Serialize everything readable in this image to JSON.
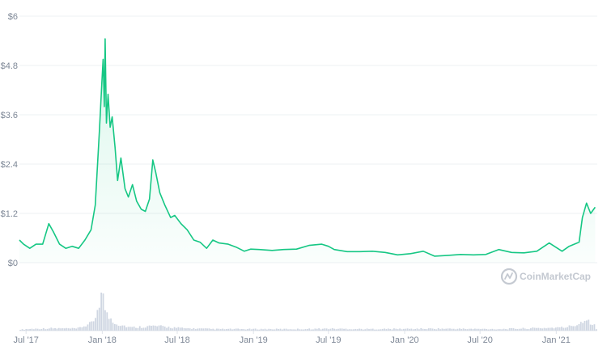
{
  "watermark": "CoinMarketCap",
  "colors": {
    "line": "#16c784",
    "area_top": "#16c784",
    "grid": "#eef0f3",
    "volume": "#cfd6e2",
    "tick": "#7d8796",
    "watermark": "#c4c9d1"
  },
  "chart_data": {
    "type": "line",
    "title": "",
    "xlabel": "",
    "ylabel": "",
    "ylim": [
      0,
      6
    ],
    "yticks": [
      {
        "value": 0,
        "label": "$0"
      },
      {
        "value": 1.2,
        "label": "$1.2"
      },
      {
        "value": 2.4,
        "label": "$2.4"
      },
      {
        "value": 3.6,
        "label": "$3.6"
      },
      {
        "value": 4.8,
        "label": "$4.8"
      },
      {
        "value": 6,
        "label": "$6"
      }
    ],
    "xlim": [
      "2017-06-15",
      "2021-04-10"
    ],
    "xticks": [
      {
        "date": "2017-07-01",
        "label": "Jul '17"
      },
      {
        "date": "2018-01-01",
        "label": "Jan '18"
      },
      {
        "date": "2018-07-01",
        "label": "Jul '18"
      },
      {
        "date": "2019-01-01",
        "label": "Jan '19"
      },
      {
        "date": "2019-07-01",
        "label": "Jul '19"
      },
      {
        "date": "2020-01-01",
        "label": "Jan '20"
      },
      {
        "date": "2020-07-01",
        "label": "Jul '20"
      },
      {
        "date": "2021-01-01",
        "label": "Jan '21"
      }
    ],
    "grid": true,
    "series": [
      {
        "points": [
          [
            "2017-06-15",
            0.55
          ],
          [
            "2017-06-25",
            0.45
          ],
          [
            "2017-07-10",
            0.35
          ],
          [
            "2017-07-25",
            0.45
          ],
          [
            "2017-08-10",
            0.45
          ],
          [
            "2017-08-25",
            0.95
          ],
          [
            "2017-09-05",
            0.75
          ],
          [
            "2017-09-20",
            0.45
          ],
          [
            "2017-10-05",
            0.35
          ],
          [
            "2017-10-20",
            0.4
          ],
          [
            "2017-11-05",
            0.35
          ],
          [
            "2017-11-20",
            0.55
          ],
          [
            "2017-12-05",
            0.8
          ],
          [
            "2017-12-15",
            1.4
          ],
          [
            "2017-12-25",
            3.2
          ],
          [
            "2017-12-31",
            4.4
          ],
          [
            "2018-01-03",
            4.95
          ],
          [
            "2018-01-06",
            3.8
          ],
          [
            "2018-01-08",
            5.45
          ],
          [
            "2018-01-11",
            3.4
          ],
          [
            "2018-01-15",
            4.1
          ],
          [
            "2018-01-20",
            3.3
          ],
          [
            "2018-01-25",
            3.55
          ],
          [
            "2018-02-01",
            2.8
          ],
          [
            "2018-02-07",
            2.0
          ],
          [
            "2018-02-15",
            2.55
          ],
          [
            "2018-02-25",
            1.8
          ],
          [
            "2018-03-05",
            1.6
          ],
          [
            "2018-03-15",
            1.9
          ],
          [
            "2018-03-25",
            1.5
          ],
          [
            "2018-04-05",
            1.3
          ],
          [
            "2018-04-15",
            1.25
          ],
          [
            "2018-04-25",
            1.55
          ],
          [
            "2018-05-03",
            2.5
          ],
          [
            "2018-05-10",
            2.2
          ],
          [
            "2018-05-20",
            1.7
          ],
          [
            "2018-06-01",
            1.4
          ],
          [
            "2018-06-15",
            1.1
          ],
          [
            "2018-06-25",
            1.15
          ],
          [
            "2018-07-10",
            0.95
          ],
          [
            "2018-07-25",
            0.8
          ],
          [
            "2018-08-10",
            0.55
          ],
          [
            "2018-08-25",
            0.5
          ],
          [
            "2018-09-10",
            0.35
          ],
          [
            "2018-09-25",
            0.55
          ],
          [
            "2018-10-10",
            0.48
          ],
          [
            "2018-11-01",
            0.45
          ],
          [
            "2018-11-20",
            0.38
          ],
          [
            "2018-12-10",
            0.28
          ],
          [
            "2018-12-25",
            0.33
          ],
          [
            "2019-01-15",
            0.32
          ],
          [
            "2019-02-15",
            0.3
          ],
          [
            "2019-03-15",
            0.32
          ],
          [
            "2019-04-15",
            0.33
          ],
          [
            "2019-05-15",
            0.42
          ],
          [
            "2019-06-15",
            0.45
          ],
          [
            "2019-07-01",
            0.4
          ],
          [
            "2019-07-15",
            0.32
          ],
          [
            "2019-08-15",
            0.27
          ],
          [
            "2019-09-15",
            0.27
          ],
          [
            "2019-10-15",
            0.28
          ],
          [
            "2019-11-15",
            0.25
          ],
          [
            "2019-12-15",
            0.19
          ],
          [
            "2020-01-15",
            0.22
          ],
          [
            "2020-02-15",
            0.28
          ],
          [
            "2020-03-13",
            0.16
          ],
          [
            "2020-04-15",
            0.18
          ],
          [
            "2020-05-15",
            0.2
          ],
          [
            "2020-06-15",
            0.19
          ],
          [
            "2020-07-15",
            0.2
          ],
          [
            "2020-08-15",
            0.32
          ],
          [
            "2020-09-15",
            0.25
          ],
          [
            "2020-10-15",
            0.24
          ],
          [
            "2020-11-15",
            0.28
          ],
          [
            "2020-12-15",
            0.48
          ],
          [
            "2021-01-15",
            0.28
          ],
          [
            "2021-02-01",
            0.4
          ],
          [
            "2021-02-25",
            0.5
          ],
          [
            "2021-03-05",
            1.1
          ],
          [
            "2021-03-15",
            1.45
          ],
          [
            "2021-03-25",
            1.2
          ],
          [
            "2021-04-05",
            1.35
          ]
        ]
      }
    ],
    "volume": {
      "points": [
        [
          "2017-07-01",
          0.04
        ],
        [
          "2017-09-01",
          0.06
        ],
        [
          "2017-11-01",
          0.05
        ],
        [
          "2017-12-10",
          0.2
        ],
        [
          "2017-12-20",
          0.55
        ],
        [
          "2017-12-28",
          1.0
        ],
        [
          "2018-01-05",
          0.75
        ],
        [
          "2018-01-12",
          0.4
        ],
        [
          "2018-02-05",
          0.18
        ],
        [
          "2018-03-10",
          0.08
        ],
        [
          "2018-05-05",
          0.12
        ],
        [
          "2018-07-15",
          0.06
        ],
        [
          "2018-10-01",
          0.04
        ],
        [
          "2019-04-15",
          0.04
        ],
        [
          "2019-07-01",
          0.05
        ],
        [
          "2019-10-01",
          0.04
        ],
        [
          "2020-03-13",
          0.05
        ],
        [
          "2020-08-15",
          0.04
        ],
        [
          "2021-01-20",
          0.08
        ],
        [
          "2021-02-20",
          0.15
        ],
        [
          "2021-03-10",
          0.3
        ],
        [
          "2021-03-20",
          0.25
        ],
        [
          "2021-04-05",
          0.18
        ]
      ]
    }
  }
}
